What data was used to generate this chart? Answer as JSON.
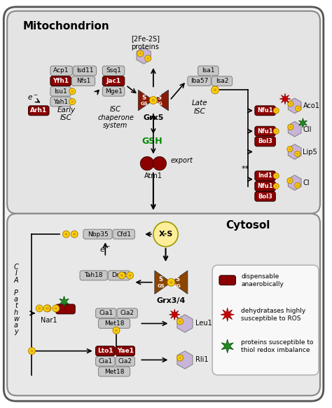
{
  "dark_red": "#8B0000",
  "brown_grx": "#8B4513",
  "mito_label": "Mitochondrion",
  "cytosol_label": "Cytosol",
  "fe2s_label": "[2Fe-2S]\nproteins",
  "early_isc_label": "Early\nISC",
  "isc_chaperone_label": "ISC\nchaperone\nsystem",
  "late_isc_label": "Late\nISC",
  "cia_label": "C\nI\nA\n\nP\na\nt\nh\nw\na\ny",
  "legend_dispensable": "dispensable\nanaerobically",
  "legend_dehydratases": "dehydratases highly\nsusceptible to ROS",
  "legend_proteins": "proteins susceptible to\nthiol redox imbalance"
}
